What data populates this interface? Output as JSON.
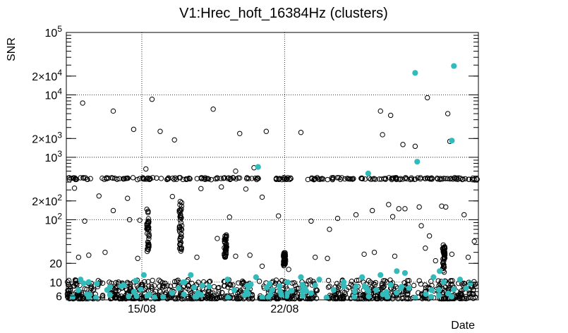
{
  "chart_data": {
    "type": "scatter",
    "title": "V1:Hrec_hoft_16384Hz (clusters)",
    "xlabel": "Date",
    "ylabel": "SNR",
    "yscale": "log",
    "ylim": [
      5.2,
      100000
    ],
    "xlim": [
      11.3,
      31.5
    ],
    "x_ticks": [
      {
        "value": 15,
        "label": "15/08"
      },
      {
        "value": 22,
        "label": "22/08"
      }
    ],
    "y_ticks": [
      {
        "value": 6,
        "label": "6"
      },
      {
        "value": 10,
        "label": "10"
      },
      {
        "value": 20,
        "label": "20"
      },
      {
        "value": 100,
        "label": "10",
        "exp": "2"
      },
      {
        "value": 200,
        "label": "2×10",
        "exp": "2"
      },
      {
        "value": 1000,
        "label": "10",
        "exp": "3"
      },
      {
        "value": 2000,
        "label": "2×10",
        "exp": "3"
      },
      {
        "value": 10000,
        "label": "10",
        "exp": "4"
      },
      {
        "value": 20000,
        "label": "2×10",
        "exp": "4"
      },
      {
        "value": 100000,
        "label": "10",
        "exp": "5"
      }
    ],
    "grid": true,
    "colors": {
      "black_markers": "#000000",
      "cyan_markers": "#33bbbb"
    },
    "series": [
      {
        "marker": "open-circle",
        "color": "#000000",
        "points": [
          [
            12.1,
            7400
          ],
          [
            13.6,
            5500
          ],
          [
            14.6,
            2800
          ],
          [
            15.5,
            8500
          ],
          [
            15.9,
            2600
          ],
          [
            16.6,
            1900
          ],
          [
            18.5,
            5900
          ],
          [
            19.8,
            2400
          ],
          [
            21.1,
            2600
          ],
          [
            22.8,
            2500
          ],
          [
            26.7,
            5500
          ],
          [
            26.8,
            2300
          ],
          [
            27.2,
            4700
          ],
          [
            27.8,
            1600
          ],
          [
            29.0,
            9000
          ],
          [
            30.0,
            5000
          ],
          [
            30.1,
            1800
          ],
          [
            28.4,
            1500
          ],
          [
            15.2,
            650
          ],
          [
            20.5,
            680
          ],
          [
            19.6,
            600
          ],
          [
            11.7,
            320
          ],
          [
            12.9,
            240
          ],
          [
            14.3,
            220
          ],
          [
            16.5,
            235
          ],
          [
            17.9,
            315
          ],
          [
            18.9,
            335
          ],
          [
            20.9,
            230
          ],
          [
            20.1,
            310
          ],
          [
            27.1,
            175
          ],
          [
            27.6,
            150
          ],
          [
            27.9,
            150
          ],
          [
            28.6,
            160
          ],
          [
            29.7,
            165
          ],
          [
            29.9,
            160
          ],
          [
            31.2,
            440
          ],
          [
            26.3,
            140
          ],
          [
            27.3,
            112
          ],
          [
            12.2,
            95
          ],
          [
            14.9,
            98
          ],
          [
            16.9,
            120
          ],
          [
            18.7,
            50
          ],
          [
            19.3,
            110
          ],
          [
            21.7,
            115
          ],
          [
            23.3,
            95
          ],
          [
            24.6,
            105
          ],
          [
            25.5,
            120
          ],
          [
            28.7,
            80
          ],
          [
            29.1,
            55
          ],
          [
            30.8,
            120
          ],
          [
            31.3,
            45
          ],
          [
            13.6,
            140
          ],
          [
            14.4,
            100
          ],
          [
            24.2,
            70
          ],
          [
            11.9,
            25
          ],
          [
            12.4,
            27
          ],
          [
            13.2,
            30
          ],
          [
            14.8,
            24
          ],
          [
            17.7,
            25
          ],
          [
            19.6,
            26
          ],
          [
            20.3,
            27
          ],
          [
            23.5,
            25
          ],
          [
            25.9,
            28
          ],
          [
            26.4,
            30
          ],
          [
            27.4,
            26
          ],
          [
            28.9,
            35
          ],
          [
            30.2,
            28
          ],
          [
            31.0,
            25
          ],
          [
            24.1,
            24
          ],
          [
            20.9,
            18
          ],
          [
            22.2,
            16
          ],
          [
            29.4,
            22
          ]
        ]
      },
      {
        "marker": "filled-circle",
        "color": "#33bbbb",
        "points": [
          [
            28.4,
            22500
          ],
          [
            30.3,
            29000
          ],
          [
            30.2,
            1850
          ],
          [
            28.5,
            850
          ],
          [
            20.7,
            700
          ],
          [
            26.1,
            550
          ],
          [
            12.0,
            11
          ],
          [
            15.1,
            13
          ],
          [
            14.7,
            10.5
          ],
          [
            17.4,
            13
          ],
          [
            19.2,
            11
          ],
          [
            20.6,
            12
          ],
          [
            22.8,
            12
          ],
          [
            23.7,
            11
          ],
          [
            24.9,
            10
          ],
          [
            25.8,
            12
          ],
          [
            26.7,
            13
          ],
          [
            27.9,
            14
          ],
          [
            29.3,
            12
          ],
          [
            30.6,
            11
          ],
          [
            27.2,
            9
          ],
          [
            29.8,
            10
          ],
          [
            25.5,
            8.5
          ],
          [
            13.3,
            7.5
          ],
          [
            16.8,
            8
          ],
          [
            18.3,
            8.5
          ],
          [
            21.4,
            7.5
          ],
          [
            23.0,
            8
          ],
          [
            24.4,
            7.5
          ],
          [
            26.0,
            8
          ],
          [
            28.1,
            8
          ],
          [
            30.9,
            8
          ],
          [
            31.1,
            9.5
          ],
          [
            27.5,
            15
          ],
          [
            29.6,
            15
          ]
        ]
      }
    ]
  }
}
